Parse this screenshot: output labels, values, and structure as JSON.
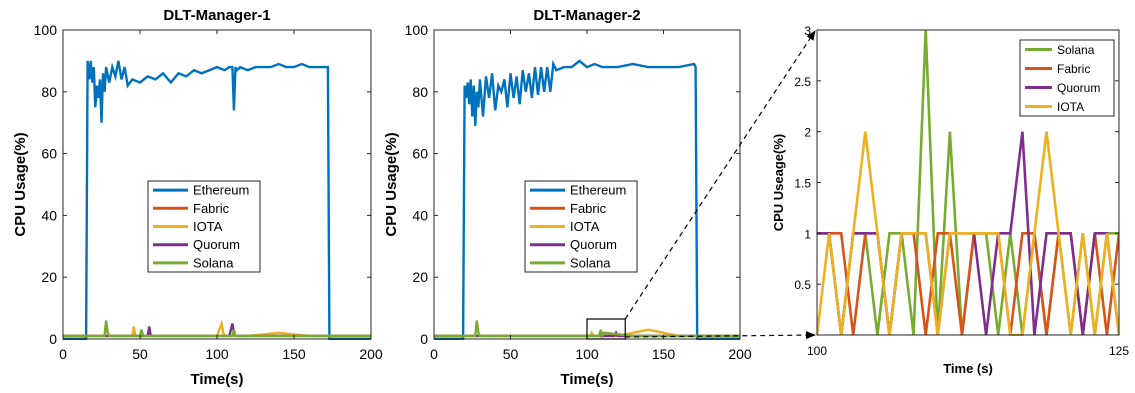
{
  "colors": {
    "Ethereum": "#0072BD",
    "Fabric": "#D95319",
    "IOTA": "#EDB120",
    "Quorum": "#7E2F8E",
    "Solana": "#77AC30"
  },
  "chart_data": [
    {
      "type": "line",
      "title": "DLT-Manager-1",
      "xlabel": "Time(s)",
      "ylabel": "CPU Usage(%)",
      "xlim": [
        0,
        200
      ],
      "ylim": [
        0,
        100
      ],
      "xticks": [
        0,
        50,
        100,
        150,
        200
      ],
      "yticks": [
        0,
        20,
        40,
        60,
        80,
        100
      ],
      "grid": false,
      "legend": [
        "Ethereum",
        "Fabric",
        "IOTA",
        "Quorum",
        "Solana"
      ],
      "legend_placement": "center",
      "series": [
        {
          "name": "Ethereum",
          "x": [
            0,
            15,
            16,
            17,
            18,
            19,
            20,
            21,
            22,
            23,
            24,
            25,
            26,
            27,
            28,
            30,
            32,
            34,
            36,
            38,
            40,
            42,
            45,
            50,
            55,
            60,
            65,
            70,
            75,
            80,
            85,
            90,
            95,
            100,
            105,
            108,
            110,
            111,
            112,
            113,
            115,
            120,
            125,
            130,
            135,
            140,
            145,
            150,
            155,
            160,
            165,
            170,
            172,
            173,
            175,
            200
          ],
          "y": [
            0,
            0,
            90,
            84,
            90,
            83,
            88,
            75,
            82,
            78,
            84,
            70,
            86,
            80,
            88,
            83,
            88,
            85,
            90,
            84,
            88,
            82,
            84,
            83,
            85,
            84,
            86,
            83,
            86,
            85,
            87,
            86,
            87,
            88,
            87,
            88,
            88,
            74,
            88,
            87,
            88,
            87,
            88,
            88,
            88,
            89,
            88,
            88,
            89,
            88,
            88,
            88,
            88,
            0,
            0,
            0
          ]
        },
        {
          "name": "Fabric",
          "x": [
            0,
            20,
            40,
            60,
            80,
            100,
            120,
            140,
            160,
            180,
            200
          ],
          "y": [
            1,
            1,
            1,
            1,
            1,
            1,
            1,
            1,
            1,
            1,
            1
          ]
        },
        {
          "name": "IOTA",
          "x": [
            0,
            45,
            46,
            47,
            60,
            80,
            100,
            103,
            104,
            105,
            120,
            140,
            160,
            180,
            200
          ],
          "y": [
            1,
            1,
            4,
            1,
            1,
            1,
            1,
            5,
            2,
            1,
            1,
            2,
            1,
            1,
            1
          ]
        },
        {
          "name": "Quorum",
          "x": [
            0,
            50,
            55,
            56,
            57,
            70,
            90,
            108,
            110,
            111,
            112,
            130,
            160,
            180,
            200
          ],
          "y": [
            1,
            1,
            1,
            4,
            1,
            1,
            1,
            1,
            5,
            2,
            1,
            1,
            1,
            1,
            1
          ]
        },
        {
          "name": "Solana",
          "x": [
            0,
            20,
            27,
            28,
            29,
            30,
            50,
            51,
            52,
            80,
            100,
            110,
            111,
            112,
            130,
            160,
            180,
            200
          ],
          "y": [
            1,
            1,
            1,
            6,
            2,
            1,
            1,
            3,
            1,
            1,
            1,
            1,
            3,
            1,
            1,
            1,
            1,
            1
          ]
        }
      ]
    },
    {
      "type": "line",
      "title": "DLT-Manager-2",
      "xlabel": "Time(s)",
      "ylabel": "CPU Usage(%)",
      "xlim": [
        0,
        200
      ],
      "ylim": [
        0,
        100
      ],
      "xticks": [
        0,
        50,
        100,
        150,
        200
      ],
      "yticks": [
        0,
        20,
        40,
        60,
        80,
        100
      ],
      "grid": false,
      "legend": [
        "Ethereum",
        "Fabric",
        "IOTA",
        "Quorum",
        "Solana"
      ],
      "legend_placement": "center",
      "zoom_box": {
        "x": [
          100,
          125
        ],
        "y": [
          0,
          3
        ]
      },
      "series": [
        {
          "name": "Ethereum",
          "x": [
            0,
            19,
            20,
            21,
            22,
            23,
            24,
            25,
            26,
            27,
            28,
            29,
            30,
            32,
            34,
            36,
            38,
            40,
            42,
            44,
            46,
            48,
            50,
            52,
            54,
            56,
            58,
            60,
            62,
            64,
            66,
            68,
            70,
            72,
            74,
            76,
            78,
            80,
            85,
            90,
            95,
            100,
            105,
            110,
            120,
            130,
            140,
            150,
            160,
            170,
            171,
            172,
            200
          ],
          "y": [
            0,
            0,
            82,
            78,
            83,
            76,
            84,
            72,
            82,
            69,
            80,
            75,
            84,
            72,
            85,
            78,
            86,
            74,
            82,
            80,
            84,
            75,
            86,
            78,
            85,
            76,
            87,
            80,
            86,
            78,
            88,
            79,
            88,
            80,
            88,
            80,
            89,
            87,
            88,
            88,
            90,
            88,
            89,
            88,
            88,
            89,
            88,
            88,
            88,
            89,
            88,
            0,
            0
          ]
        },
        {
          "name": "Fabric",
          "x": [
            0,
            20,
            40,
            60,
            80,
            100,
            120,
            140,
            160,
            180,
            200
          ],
          "y": [
            1,
            1,
            1,
            1,
            1,
            1,
            1,
            1,
            1,
            1,
            1
          ]
        },
        {
          "name": "IOTA",
          "x": [
            0,
            20,
            40,
            60,
            80,
            100,
            102,
            103,
            104,
            120,
            140,
            160,
            180,
            200
          ],
          "y": [
            1,
            1,
            1,
            1,
            1,
            1,
            1,
            2,
            1,
            1,
            3,
            1,
            1,
            1
          ]
        },
        {
          "name": "Quorum",
          "x": [
            0,
            20,
            40,
            60,
            80,
            100,
            118,
            119,
            120,
            140,
            160,
            180,
            200
          ],
          "y": [
            1,
            1,
            1,
            1,
            1,
            1,
            1,
            2,
            1,
            1,
            1,
            1,
            1
          ]
        },
        {
          "name": "Solana",
          "x": [
            0,
            20,
            27,
            28,
            29,
            30,
            50,
            80,
            100,
            108,
            109,
            110,
            111,
            130,
            160,
            180,
            200
          ],
          "y": [
            1,
            1,
            1,
            6,
            2,
            1,
            1,
            1,
            1,
            1,
            3,
            1,
            2,
            1,
            1,
            1,
            1
          ]
        }
      ]
    },
    {
      "type": "line",
      "title": "",
      "xlabel": "Time (s)",
      "ylabel": "CPU Useage(%)",
      "xlim": [
        100,
        125
      ],
      "ylim": [
        0,
        3
      ],
      "xticks": [
        100,
        125
      ],
      "yticks": [
        0.5,
        1,
        1.5,
        2,
        2.5,
        3
      ],
      "grid": false,
      "legend": [
        "Solana",
        "Fabric",
        "Quorum",
        "IOTA"
      ],
      "legend_placement": "top-right",
      "series": [
        {
          "name": "Solana",
          "x": [
            100,
            101,
            102,
            103,
            104,
            105,
            106,
            107,
            108,
            109,
            110,
            111,
            112,
            113,
            114,
            115,
            116,
            117,
            118,
            119,
            120,
            121,
            122,
            123,
            124,
            125
          ],
          "y": [
            1,
            1,
            0,
            1,
            1,
            0,
            1,
            1,
            0,
            3,
            0,
            2,
            0,
            1,
            1,
            0,
            1,
            0,
            1,
            0,
            1,
            0,
            1,
            0,
            1,
            1
          ]
        },
        {
          "name": "Fabric",
          "x": [
            100,
            101,
            102,
            103,
            104,
            105,
            106,
            107,
            108,
            109,
            110,
            111,
            112,
            113,
            114,
            115,
            116,
            117,
            118,
            119,
            120,
            121,
            122,
            123,
            124,
            125
          ],
          "y": [
            1,
            1,
            1,
            0,
            1,
            1,
            0,
            1,
            1,
            0,
            1,
            1,
            0,
            1,
            1,
            1,
            0,
            1,
            1,
            0,
            1,
            1,
            0,
            1,
            0,
            1
          ]
        },
        {
          "name": "Quorum",
          "x": [
            100,
            101,
            102,
            103,
            104,
            105,
            106,
            107,
            108,
            109,
            110,
            111,
            112,
            113,
            114,
            115,
            116,
            117,
            118,
            119,
            120,
            121,
            122,
            123,
            124,
            125
          ],
          "y": [
            1,
            1,
            0,
            1,
            1,
            1,
            0,
            1,
            1,
            1,
            0,
            1,
            1,
            1,
            0,
            1,
            1,
            2,
            0,
            1,
            1,
            1,
            0,
            1,
            1,
            0
          ]
        },
        {
          "name": "IOTA",
          "x": [
            100,
            101,
            102,
            103,
            104,
            105,
            106,
            107,
            108,
            109,
            110,
            111,
            112,
            113,
            114,
            115,
            116,
            117,
            118,
            119,
            120,
            121,
            122,
            123,
            124,
            125
          ],
          "y": [
            0,
            1,
            0,
            1,
            2,
            1,
            0,
            1,
            1,
            1,
            0,
            1,
            1,
            1,
            1,
            1,
            0,
            0,
            1,
            2,
            1,
            0,
            1,
            0,
            1,
            0
          ]
        }
      ]
    }
  ]
}
